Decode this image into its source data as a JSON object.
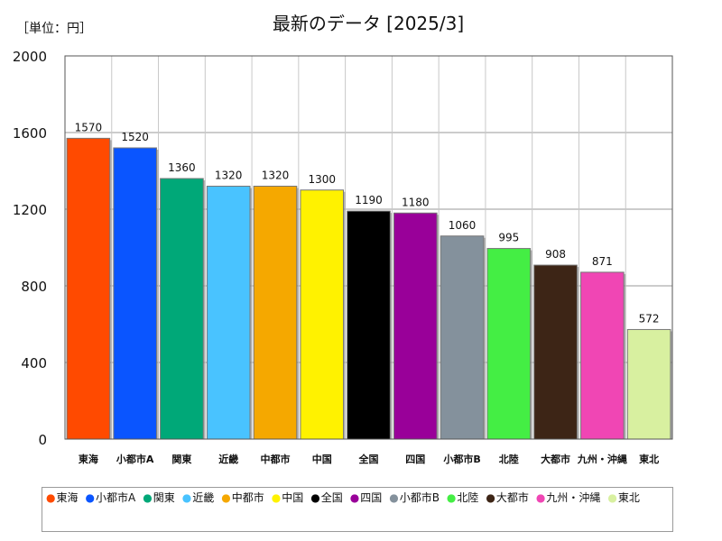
{
  "chart_data": {
    "type": "bar",
    "title": "最新のデータ [2025/3]",
    "unit_label": "［単位：円］",
    "categories": [
      "東海",
      "小都市A",
      "関東",
      "近畿",
      "中都市",
      "中国",
      "全国",
      "四国",
      "小都市B",
      "北陸",
      "大都市",
      "九州・沖縄",
      "東北"
    ],
    "values": [
      1570,
      1520,
      1360,
      1320,
      1320,
      1300,
      1190,
      1180,
      1060,
      995,
      908,
      871,
      572
    ],
    "colors": [
      "#ff4a00",
      "#0a55ff",
      "#00a878",
      "#49c3ff",
      "#f5a800",
      "#fff200",
      "#000000",
      "#990099",
      "#84919c",
      "#44ee44",
      "#3d2516",
      "#f046b4",
      "#d8f0a0"
    ],
    "ylim": [
      0,
      2000
    ],
    "yticks": [
      0,
      400,
      800,
      1200,
      1600,
      2000
    ],
    "grid": true,
    "legend_position": "bottom"
  }
}
